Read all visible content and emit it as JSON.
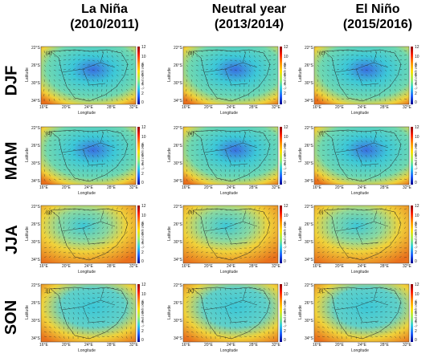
{
  "columns": [
    {
      "line1": "La Niña",
      "line2": "(2010/2011)"
    },
    {
      "line1": "Neutral year",
      "line2": "(2013/2014)"
    },
    {
      "line1": "El Niño",
      "line2": "(2015/2016)"
    }
  ],
  "rows": [
    "DJF",
    "MAM",
    "JJA",
    "SON"
  ],
  "panel_labels": [
    "(a)",
    "(b)",
    "(c)",
    "(d)",
    "(e)",
    "(f)",
    "(g)",
    "(h)",
    "(i)",
    "(j)",
    "(k)",
    "(l)"
  ],
  "axes": {
    "ylabel": "Latitude",
    "xlabel": "Longitude",
    "yticks": [
      "22°S",
      "26°S",
      "30°S",
      "34°S"
    ],
    "xticks": [
      "16°E",
      "20°E",
      "24°E",
      "28°E",
      "32°E"
    ]
  },
  "colorbar": {
    "label": "wind speed (m s⁻¹)",
    "ticks": [
      "12",
      "10",
      "8",
      "6",
      "4",
      "2",
      "0"
    ],
    "colors": [
      "#8b0000",
      "#ff2000",
      "#ff9000",
      "#ffe000",
      "#a0f060",
      "#30d0e0",
      "#2060ff",
      "#00008b"
    ]
  },
  "field_colors": {
    "low": "#3a6fe0",
    "mid": "#3cc8d8",
    "high": "#f0d23a",
    "max": "#e8701c"
  }
}
